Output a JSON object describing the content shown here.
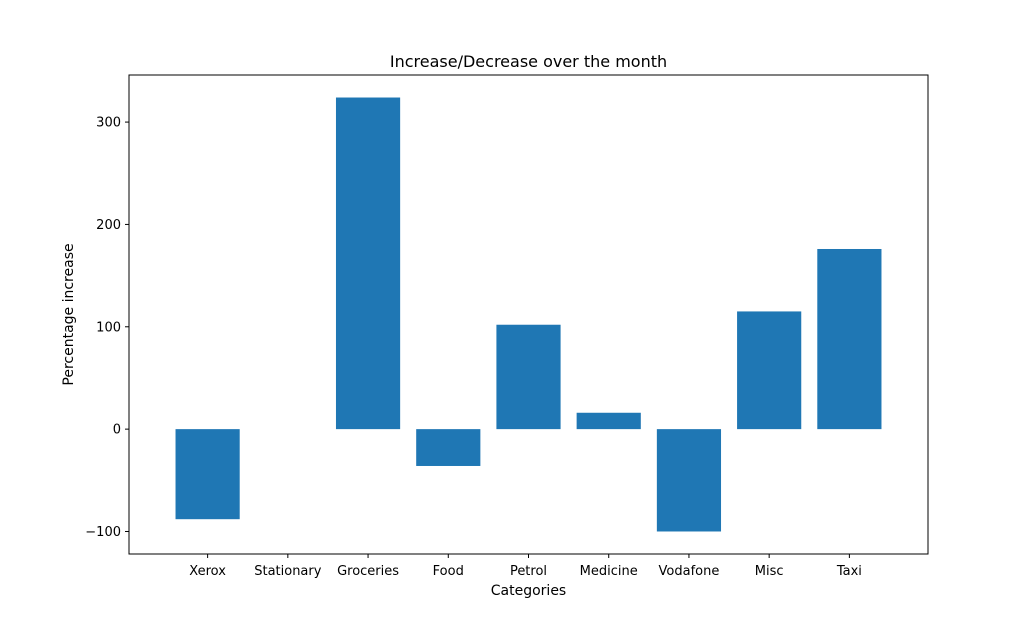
{
  "chart_data": {
    "type": "bar",
    "title": "Increase/Decrease over the month",
    "xlabel": "Categories",
    "ylabel": "Percentage increase",
    "categories": [
      "Xerox",
      "Stationary",
      "Groceries",
      "Food",
      "Petrol",
      "Medicine",
      "Vodafone",
      "Misc",
      "Taxi"
    ],
    "values": [
      -88,
      0,
      324,
      -36,
      102,
      16,
      -100,
      115,
      176
    ],
    "ylim": [
      -122,
      346
    ],
    "yticks": [
      -100,
      0,
      100,
      200,
      300
    ],
    "ytick_labels": [
      "−100",
      "0",
      "100",
      "200",
      "300"
    ],
    "grid": false,
    "bar_color": "#1f77b4"
  }
}
